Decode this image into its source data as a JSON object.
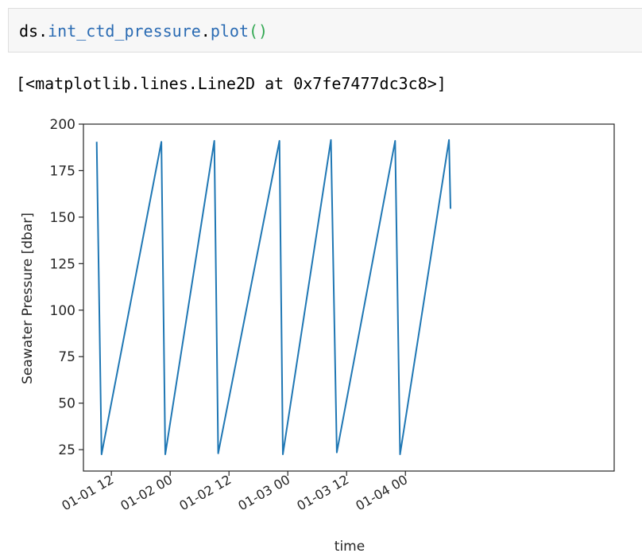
{
  "code_cell": {
    "object": "ds",
    "dot1": ".",
    "attribute": "int_ctd_pressure",
    "dot2": ".",
    "method": "plot",
    "parens": "()"
  },
  "output": {
    "text": "[<matplotlib.lines.Line2D at 0x7fe7477dc3c8>]"
  },
  "colors": {
    "attribute": "#2a6bb3",
    "method": "#2a6bb3",
    "parens": "#32a852",
    "line": "#1f77b4"
  },
  "chart_data": {
    "type": "line",
    "xlabel": "time",
    "ylabel": "Seawater Pressure [dbar]",
    "x_unit": "hours since 01-01 00",
    "xlim": [
      6.3,
      114.6
    ],
    "ylim": [
      13.5,
      200
    ],
    "yticks": [
      25,
      50,
      75,
      100,
      125,
      150,
      175,
      200
    ],
    "xticks": [
      {
        "value": 12,
        "label": "01-01 12"
      },
      {
        "value": 24,
        "label": "01-02 00"
      },
      {
        "value": 36,
        "label": "01-02 12"
      },
      {
        "value": 48,
        "label": "01-03 00"
      },
      {
        "value": 60,
        "label": "01-03 12"
      },
      {
        "value": 72,
        "label": "01-04 00"
      }
    ],
    "grid": false,
    "series": [
      {
        "x": [
          9.0,
          10.0,
          22.2,
          23.0,
          33.0,
          33.8,
          46.3,
          47.0,
          56.8,
          58.0,
          69.9,
          70.9,
          80.9,
          81.2
        ],
        "y": [
          190.5,
          22.5,
          190.5,
          22.5,
          191.0,
          23.0,
          191.0,
          22.5,
          191.5,
          23.5,
          191.0,
          22.5,
          191.5,
          154.5
        ]
      }
    ]
  }
}
